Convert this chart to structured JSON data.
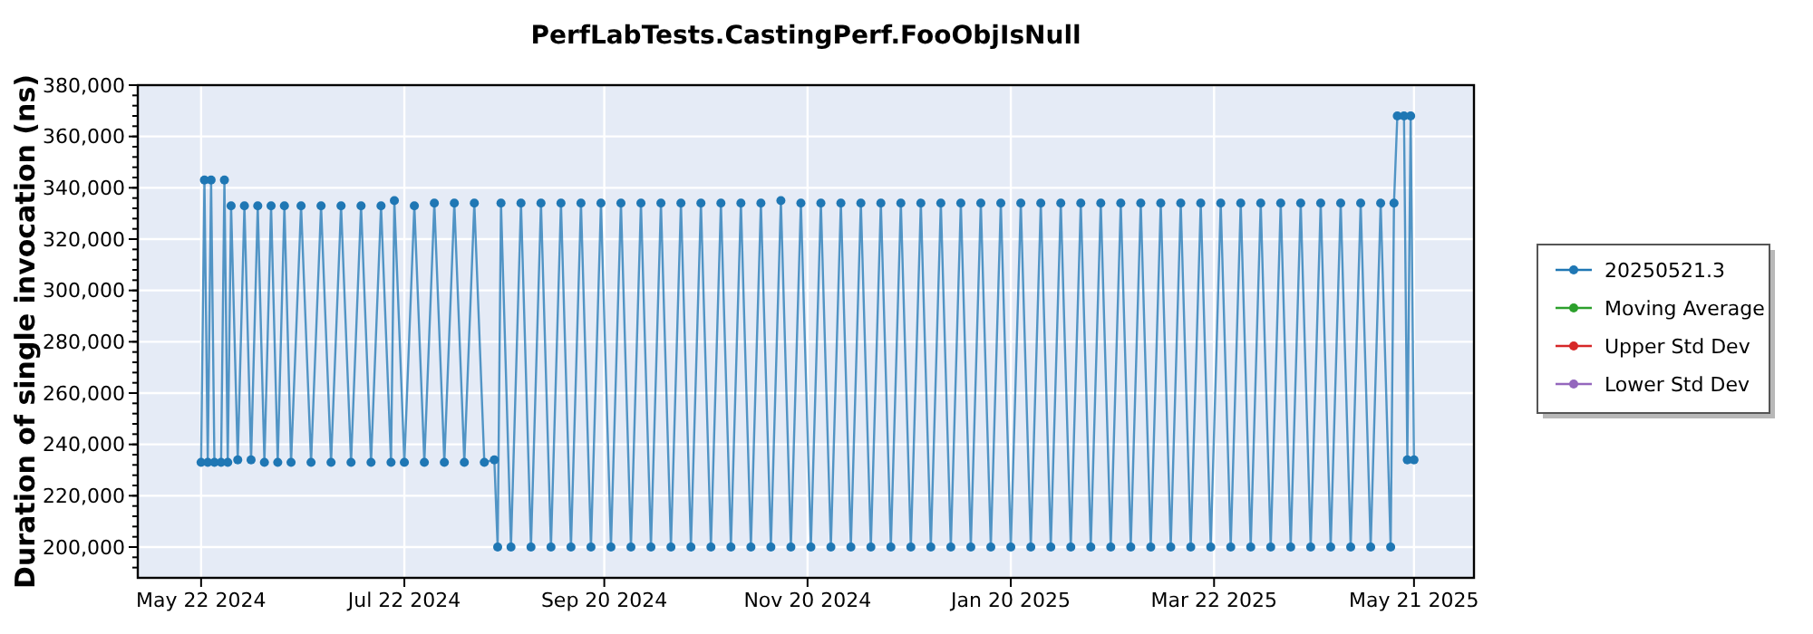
{
  "chart_data": {
    "type": "line",
    "title": "PerfLabTests.CastingPerf.FooObjIsNull",
    "ylabel": "Duration of single invocation (ns)",
    "xlim": [
      "2024-05-03",
      "2025-06-08"
    ],
    "xticks": [
      {
        "value": "2024-05-22",
        "label": "May 22 2024"
      },
      {
        "value": "2024-07-22",
        "label": "Jul 22 2024"
      },
      {
        "value": "2024-09-20",
        "label": "Sep 20 2024"
      },
      {
        "value": "2024-11-20",
        "label": "Nov 20 2024"
      },
      {
        "value": "2025-01-20",
        "label": "Jan 20 2025"
      },
      {
        "value": "2025-03-22",
        "label": "Mar 22 2025"
      },
      {
        "value": "2025-05-21",
        "label": "May 21 2025"
      }
    ],
    "ylim": [
      188000,
      380000
    ],
    "yticks": [
      {
        "value": 200000,
        "label": "200,000"
      },
      {
        "value": 220000,
        "label": "220,000"
      },
      {
        "value": 240000,
        "label": "240,000"
      },
      {
        "value": 260000,
        "label": "260,000"
      },
      {
        "value": 280000,
        "label": "280,000"
      },
      {
        "value": 300000,
        "label": "300,000"
      },
      {
        "value": 320000,
        "label": "320,000"
      },
      {
        "value": 340000,
        "label": "340,000"
      },
      {
        "value": 360000,
        "label": "360,000"
      },
      {
        "value": 380000,
        "label": "380,000"
      }
    ],
    "grid": true,
    "legend": "right",
    "marker": "circle",
    "series": [
      {
        "name": "20250521.3",
        "color": "#1f77b4",
        "x": [
          "2024-05-22",
          "2024-05-23",
          "2024-05-24",
          "2024-05-25",
          "2024-05-26",
          "2024-05-28",
          "2024-05-29",
          "2024-05-30",
          "2024-05-31",
          "2024-06-02",
          "2024-06-04",
          "2024-06-06",
          "2024-06-08",
          "2024-06-10",
          "2024-06-12",
          "2024-06-14",
          "2024-06-16",
          "2024-06-18",
          "2024-06-21",
          "2024-06-24",
          "2024-06-27",
          "2024-06-30",
          "2024-07-03",
          "2024-07-06",
          "2024-07-09",
          "2024-07-12",
          "2024-07-15",
          "2024-07-18",
          "2024-07-19",
          "2024-07-22",
          "2024-07-25",
          "2024-07-28",
          "2024-07-31",
          "2024-08-03",
          "2024-08-06",
          "2024-08-09",
          "2024-08-12",
          "2024-08-15",
          "2024-08-18",
          "2024-08-19",
          "2024-08-20",
          "2024-08-23",
          "2024-08-26",
          "2024-08-29",
          "2024-09-01",
          "2024-09-04",
          "2024-09-07",
          "2024-09-10",
          "2024-09-13",
          "2024-09-16",
          "2024-09-19",
          "2024-09-22",
          "2024-09-25",
          "2024-09-28",
          "2024-10-01",
          "2024-10-04",
          "2024-10-07",
          "2024-10-10",
          "2024-10-13",
          "2024-10-16",
          "2024-10-19",
          "2024-10-22",
          "2024-10-25",
          "2024-10-28",
          "2024-10-31",
          "2024-11-03",
          "2024-11-06",
          "2024-11-09",
          "2024-11-12",
          "2024-11-15",
          "2024-11-18",
          "2024-11-21",
          "2024-11-24",
          "2024-11-27",
          "2024-11-30",
          "2024-12-03",
          "2024-12-06",
          "2024-12-09",
          "2024-12-12",
          "2024-12-15",
          "2024-12-18",
          "2024-12-21",
          "2024-12-24",
          "2024-12-27",
          "2024-12-30",
          "2025-01-02",
          "2025-01-05",
          "2025-01-08",
          "2025-01-11",
          "2025-01-14",
          "2025-01-17",
          "2025-01-20",
          "2025-01-23",
          "2025-01-26",
          "2025-01-29",
          "2025-02-01",
          "2025-02-04",
          "2025-02-07",
          "2025-02-10",
          "2025-02-13",
          "2025-02-16",
          "2025-02-19",
          "2025-02-22",
          "2025-02-25",
          "2025-02-28",
          "2025-03-03",
          "2025-03-06",
          "2025-03-09",
          "2025-03-12",
          "2025-03-15",
          "2025-03-18",
          "2025-03-21",
          "2025-03-24",
          "2025-03-27",
          "2025-03-30",
          "2025-04-02",
          "2025-04-05",
          "2025-04-08",
          "2025-04-11",
          "2025-04-14",
          "2025-04-17",
          "2025-04-20",
          "2025-04-23",
          "2025-04-26",
          "2025-04-29",
          "2025-05-02",
          "2025-05-05",
          "2025-05-08",
          "2025-05-11",
          "2025-05-14",
          "2025-05-15",
          "2025-05-16",
          "2025-05-18",
          "2025-05-19",
          "2025-05-20",
          "2025-05-21"
        ],
        "values": [
          233000,
          343000,
          233000,
          343000,
          233000,
          233000,
          343000,
          233000,
          333000,
          234000,
          333000,
          234000,
          333000,
          233000,
          333000,
          233000,
          333000,
          233000,
          333000,
          233000,
          333000,
          233000,
          333000,
          233000,
          333000,
          233000,
          333000,
          233000,
          335000,
          233000,
          333000,
          233000,
          334000,
          233000,
          334000,
          233000,
          334000,
          233000,
          234000,
          200000,
          334000,
          200000,
          334000,
          200000,
          334000,
          200000,
          334000,
          200000,
          334000,
          200000,
          334000,
          200000,
          334000,
          200000,
          334000,
          200000,
          334000,
          200000,
          334000,
          200000,
          334000,
          200000,
          334000,
          200000,
          334000,
          200000,
          334000,
          200000,
          335000,
          200000,
          334000,
          200000,
          334000,
          200000,
          334000,
          200000,
          334000,
          200000,
          334000,
          200000,
          334000,
          200000,
          334000,
          200000,
          334000,
          200000,
          334000,
          200000,
          334000,
          200000,
          334000,
          200000,
          334000,
          200000,
          334000,
          200000,
          334000,
          200000,
          334000,
          200000,
          334000,
          200000,
          334000,
          200000,
          334000,
          200000,
          334000,
          200000,
          334000,
          200000,
          334000,
          200000,
          334000,
          200000,
          334000,
          200000,
          334000,
          200000,
          334000,
          200000,
          334000,
          200000,
          334000,
          200000,
          334000,
          200000,
          334000,
          200000,
          334000,
          200000,
          334000,
          368000,
          368000,
          234000,
          368000,
          234000
        ]
      },
      {
        "name": "Moving Average",
        "color": "#2ca02c"
      },
      {
        "name": "Upper Std Dev",
        "color": "#d62728"
      },
      {
        "name": "Lower Std Dev",
        "color": "#9467bd"
      }
    ]
  }
}
